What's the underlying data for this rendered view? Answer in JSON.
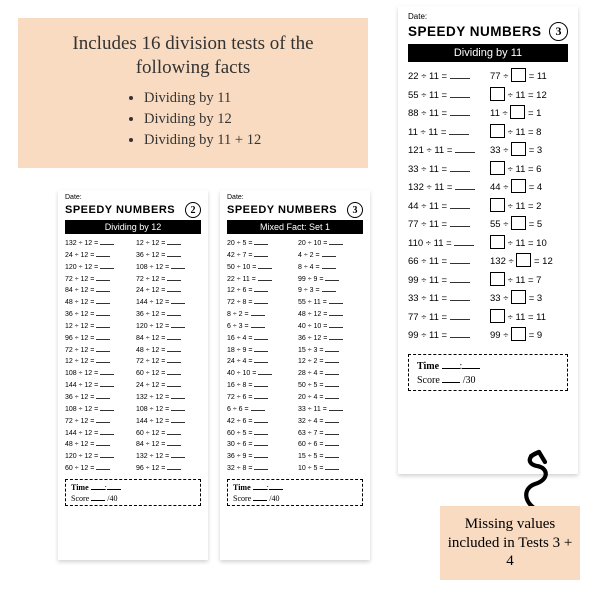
{
  "intro": {
    "heading": "Includes 16 division tests of the following facts",
    "bullets": [
      "Dividing by 11",
      "Dividing by 12",
      "Dividing by 11 + 12"
    ],
    "bg_color": "#f8dbc1"
  },
  "common": {
    "date_label": "Date:",
    "title": "SPEEDY NUMBERS",
    "time_label": "Time",
    "score_label": "Score"
  },
  "sheet2": {
    "badge": "2",
    "bar": "Dividing by 12",
    "score_denom": "/40",
    "left": [
      "132 ÷ 12 =",
      "24 ÷ 12 =",
      "120 ÷ 12 =",
      "72 ÷ 12 =",
      "84 ÷ 12 =",
      "48 ÷ 12 =",
      "36 ÷ 12 =",
      "12 ÷ 12 =",
      "96 ÷ 12 =",
      "72 ÷ 12 =",
      "12 ÷ 12 =",
      "108 ÷ 12 =",
      "144 ÷ 12 =",
      "36 ÷ 12 =",
      "108 ÷ 12 =",
      "72 ÷ 12 =",
      "144 ÷ 12 =",
      "48 ÷ 12 =",
      "120 ÷ 12 =",
      "60 ÷ 12 ="
    ],
    "right": [
      "12 ÷ 12 =",
      "36 ÷ 12 =",
      "108 ÷ 12 =",
      "72 ÷ 12 =",
      "24 ÷ 12 =",
      "144 ÷ 12 =",
      "36 ÷ 12 =",
      "120 ÷ 12 =",
      "84 ÷ 12 =",
      "48 ÷ 12 =",
      "72 ÷ 12 =",
      "60 ÷ 12 =",
      "24 ÷ 12 =",
      "132 ÷ 12 =",
      "108 ÷ 12 =",
      "144 ÷ 12 =",
      "60 ÷ 12 =",
      "84 ÷ 12 =",
      "132 ÷ 12 =",
      "96 ÷ 12 ="
    ]
  },
  "sheet3": {
    "badge": "3",
    "bar": "Mixed Fact: Set 1",
    "score_denom": "/40",
    "left": [
      "20 ÷ 5 =",
      "42 ÷ 7 =",
      "50 ÷ 10 =",
      "22 ÷ 11 =",
      "12 ÷ 6 =",
      "72 ÷ 8 =",
      "8 ÷ 2 =",
      "6 ÷ 3 =",
      "16 ÷ 4 =",
      "18 ÷ 9 =",
      "24 ÷ 4 =",
      "40 ÷ 10 =",
      "16 ÷ 8 =",
      "72 ÷ 6 =",
      "6 ÷ 6 =",
      "42 ÷ 6 =",
      "60 ÷ 5 =",
      "30 ÷ 6 =",
      "36 ÷ 9 =",
      "32 ÷ 8 ="
    ],
    "right": [
      "20 ÷ 10 =",
      "4 ÷ 2 =",
      "8 ÷ 4 =",
      "99 ÷ 9 =",
      "9 ÷ 3 =",
      "55 ÷ 11 =",
      "48 ÷ 12 =",
      "40 ÷ 10 =",
      "36 ÷ 12 =",
      "15 ÷ 3 =",
      "12 ÷ 2 =",
      "28 ÷ 4 =",
      "50 ÷ 5 =",
      "20 ÷ 4 =",
      "33 ÷ 11 =",
      "32 ÷ 4 =",
      "63 ÷ 7 =",
      "60 ÷ 6 =",
      "15 ÷ 5 =",
      "10 ÷ 5 ="
    ]
  },
  "tall": {
    "badge": "3",
    "bar": "Dividing by 11",
    "score_denom": "/30",
    "left": [
      "22 ÷ 11 =",
      "55 ÷ 11 =",
      "88 ÷ 11 =",
      "11 ÷ 11 =",
      "121 ÷ 11 =",
      "33 ÷ 11 =",
      "132 ÷ 11 =",
      "44 ÷ 11 =",
      "77 ÷ 11 =",
      "110 ÷ 11 =",
      "66 ÷ 11 =",
      "99 ÷ 11 =",
      "33 ÷ 11 =",
      "77 ÷ 11 =",
      "99 ÷ 11 ="
    ],
    "right": [
      {
        "pre": "77 ÷",
        "post": "= 11"
      },
      {
        "pre": "",
        "post": "÷ 11 = 12"
      },
      {
        "pre": "11 ÷",
        "post": "= 1"
      },
      {
        "pre": "",
        "post": "÷ 11 = 8"
      },
      {
        "pre": "33 ÷",
        "post": "= 3"
      },
      {
        "pre": "",
        "post": "÷ 11 = 6"
      },
      {
        "pre": "44 ÷",
        "post": "= 4"
      },
      {
        "pre": "",
        "post": "÷ 11 = 2"
      },
      {
        "pre": "55 ÷",
        "post": "= 5"
      },
      {
        "pre": "",
        "post": "÷ 11 = 10"
      },
      {
        "pre": "132 ÷",
        "post": "= 12"
      },
      {
        "pre": "",
        "post": "÷ 11 = 7"
      },
      {
        "pre": "33 ÷",
        "post": "= 3"
      },
      {
        "pre": "",
        "post": "÷ 11 = 11"
      },
      {
        "pre": "99 ÷",
        "post": "= 9"
      }
    ]
  },
  "callout": "Missing values included in Tests 3 + 4"
}
